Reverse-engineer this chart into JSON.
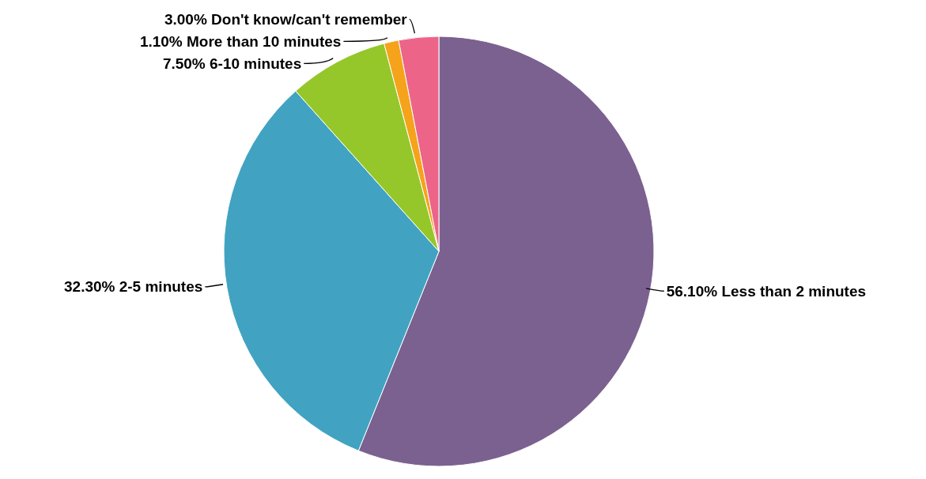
{
  "chart_data": {
    "type": "pie",
    "categories": [
      "Less than 2 minutes",
      "2-5 minutes",
      "6-10 minutes",
      "More than 10 minutes",
      "Don't know/can't remember"
    ],
    "values": [
      56.1,
      32.3,
      7.5,
      1.1,
      3.0
    ],
    "value_labels": [
      "56.10%",
      "32.30%",
      "7.50%",
      "1.10%",
      "3.00%"
    ],
    "colors": [
      "#7b6190",
      "#41a3c1",
      "#95c72a",
      "#f5a31b",
      "#ec6589"
    ],
    "legend": false
  }
}
